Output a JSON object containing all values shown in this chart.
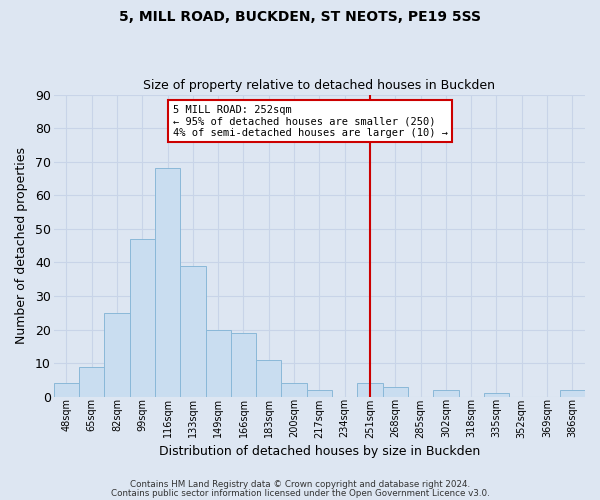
{
  "title": "5, MILL ROAD, BUCKDEN, ST NEOTS, PE19 5SS",
  "subtitle": "Size of property relative to detached houses in Buckden",
  "xlabel": "Distribution of detached houses by size in Buckden",
  "ylabel": "Number of detached properties",
  "footnote1": "Contains HM Land Registry data © Crown copyright and database right 2024.",
  "footnote2": "Contains public sector information licensed under the Open Government Licence v3.0.",
  "bin_labels": [
    "48sqm",
    "65sqm",
    "82sqm",
    "99sqm",
    "116sqm",
    "133sqm",
    "149sqm",
    "166sqm",
    "183sqm",
    "200sqm",
    "217sqm",
    "234sqm",
    "251sqm",
    "268sqm",
    "285sqm",
    "302sqm",
    "318sqm",
    "335sqm",
    "352sqm",
    "369sqm",
    "386sqm"
  ],
  "bar_values": [
    4,
    9,
    25,
    47,
    68,
    39,
    20,
    19,
    11,
    4,
    2,
    0,
    4,
    3,
    0,
    2,
    0,
    1,
    0,
    0,
    2
  ],
  "bar_color": "#c9ddf0",
  "bar_edge_color": "#8ab8d8",
  "vline_x_index": 12,
  "vline_color": "#cc0000",
  "annotation_title": "5 MILL ROAD: 252sqm",
  "annotation_line1": "← 95% of detached houses are smaller (250)",
  "annotation_line2": "4% of semi-detached houses are larger (10) →",
  "annotation_box_facecolor": "#ffffff",
  "annotation_box_edgecolor": "#cc0000",
  "grid_color": "#c8d4e8",
  "background_color": "#dde6f2",
  "ylim": [
    0,
    90
  ],
  "yticks": [
    0,
    10,
    20,
    30,
    40,
    50,
    60,
    70,
    80,
    90
  ]
}
